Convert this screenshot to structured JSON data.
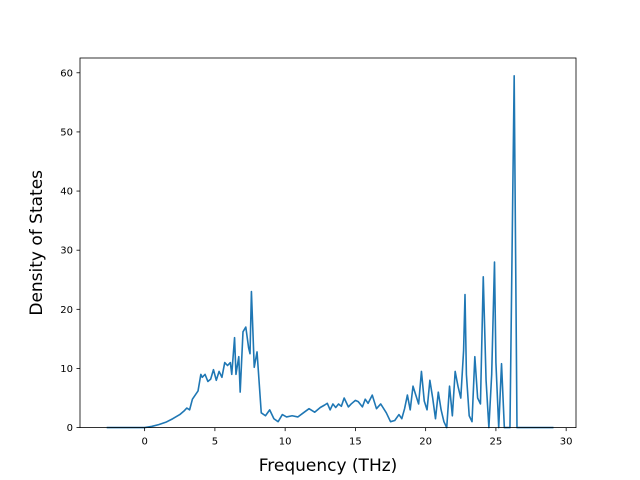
{
  "chart_data": {
    "type": "line",
    "xlabel": "Frequency (THz)",
    "ylabel": "Density of States",
    "xlim": [
      -4.6,
      30.7
    ],
    "ylim": [
      0,
      62.5
    ],
    "x_ticks": [
      0,
      5,
      10,
      15,
      20,
      25,
      30
    ],
    "y_ticks": [
      0,
      10,
      20,
      30,
      40,
      50,
      60
    ],
    "grid": false,
    "line_color": "#1f77b4",
    "series": [
      {
        "x": [
          -2.7,
          -1.0,
          0.0,
          0.5,
          1.0,
          1.5,
          2.0,
          2.5,
          2.8,
          3.0,
          3.2,
          3.4,
          3.6,
          3.8,
          4.0,
          4.1,
          4.3,
          4.5,
          4.7,
          4.9,
          5.1,
          5.3,
          5.5,
          5.7,
          5.9,
          6.1,
          6.2,
          6.4,
          6.5,
          6.7,
          6.8,
          7.0,
          7.2,
          7.4,
          7.5,
          7.6,
          7.8,
          8.0,
          8.3,
          8.6,
          8.9,
          9.2,
          9.5,
          9.8,
          10.1,
          10.5,
          10.9,
          11.3,
          11.7,
          12.1,
          12.5,
          12.8,
          13.0,
          13.2,
          13.4,
          13.6,
          13.8,
          14.0,
          14.2,
          14.5,
          14.7,
          15.0,
          15.2,
          15.5,
          15.7,
          15.9,
          16.2,
          16.5,
          16.8,
          17.2,
          17.5,
          17.8,
          18.1,
          18.3,
          18.5,
          18.7,
          18.9,
          19.1,
          19.3,
          19.5,
          19.7,
          19.9,
          20.1,
          20.3,
          20.5,
          20.7,
          20.9,
          21.1,
          21.3,
          21.5,
          21.7,
          21.9,
          22.1,
          22.3,
          22.5,
          22.7,
          22.8,
          22.9,
          23.1,
          23.3,
          23.5,
          23.7,
          23.9,
          24.1,
          24.3,
          24.5,
          24.7,
          24.9,
          25.0,
          25.2,
          25.4,
          25.6,
          25.8,
          26.0,
          26.3,
          26.5,
          26.7,
          27.0,
          28.0,
          29.1
        ],
        "y": [
          0,
          0,
          0,
          0.2,
          0.5,
          0.9,
          1.5,
          2.2,
          2.8,
          3.3,
          3.0,
          4.8,
          5.5,
          6.2,
          9.0,
          8.5,
          9.0,
          7.8,
          8.2,
          9.8,
          8.0,
          9.5,
          8.5,
          11.0,
          10.5,
          11.0,
          9.0,
          15.2,
          9.0,
          12.0,
          6.0,
          16.2,
          17.0,
          13.5,
          12.5,
          23.0,
          10.2,
          12.8,
          2.5,
          2.0,
          3.0,
          1.5,
          1.0,
          2.2,
          1.8,
          2.0,
          1.8,
          2.5,
          3.2,
          2.6,
          3.4,
          3.8,
          4.1,
          3.0,
          4.0,
          3.4,
          4.0,
          3.6,
          5.0,
          3.5,
          4.0,
          4.6,
          4.4,
          3.5,
          4.8,
          4.1,
          5.5,
          3.2,
          4.0,
          2.5,
          1.0,
          1.2,
          2.2,
          1.5,
          3.2,
          5.5,
          3.0,
          7.0,
          5.5,
          4.0,
          9.5,
          4.5,
          3.0,
          8.0,
          5.0,
          1.5,
          6.0,
          3.0,
          1.0,
          0,
          7.0,
          2.0,
          9.5,
          7.0,
          5.0,
          13.0,
          22.5,
          9.0,
          2.0,
          1.0,
          12.0,
          5.0,
          4.0,
          25.5,
          8.0,
          0,
          9.0,
          28.0,
          11.0,
          0,
          10.8,
          0,
          0,
          0,
          59.5,
          0,
          0,
          0,
          0,
          0
        ]
      }
    ]
  }
}
